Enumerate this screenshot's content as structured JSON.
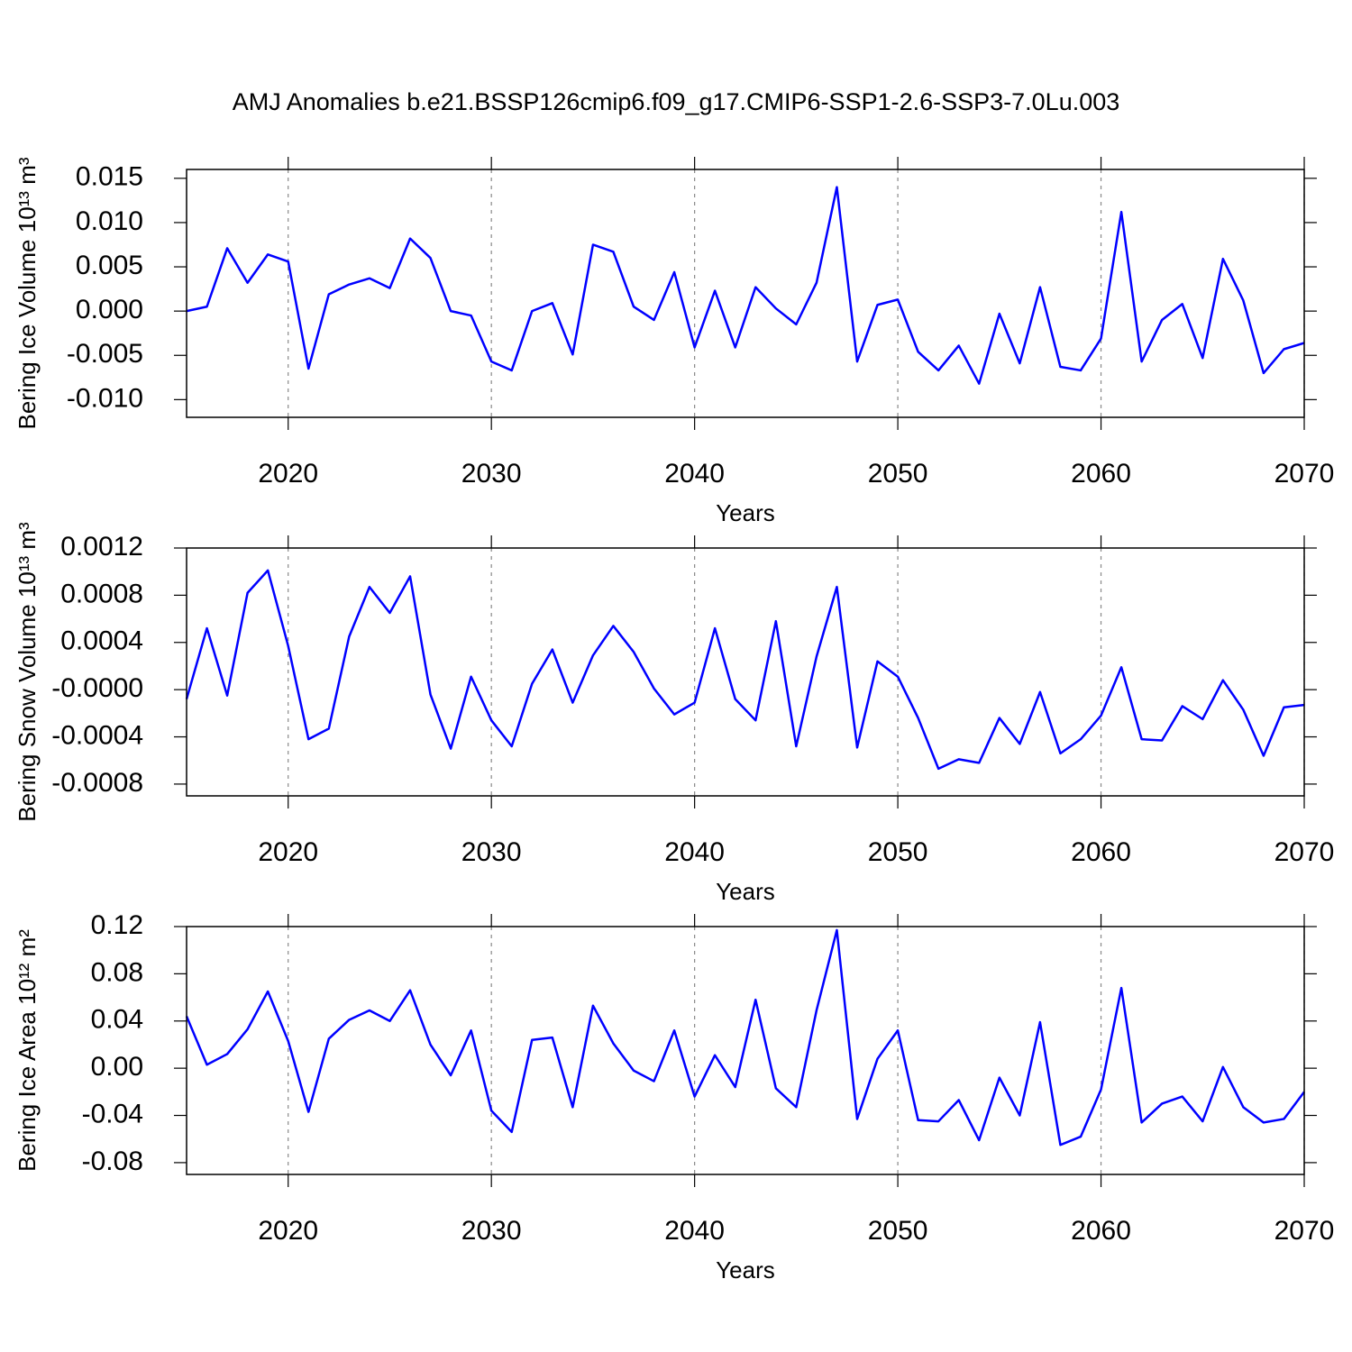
{
  "chart_data": [
    {
      "type": "line",
      "title": "AMJ Anomalies b.e21.BSSP126cmip6.f09_g17.CMIP6-SSP1-2.6-SSP3-7.0Lu.003",
      "ylabel": "Bering Ice Volume 10¹³ m³",
      "xlabel": "Years",
      "color": "#0000ff",
      "xgrid": true,
      "x": [
        2015,
        2016,
        2017,
        2018,
        2019,
        2020,
        2021,
        2022,
        2023,
        2024,
        2025,
        2026,
        2027,
        2028,
        2029,
        2030,
        2031,
        2032,
        2033,
        2034,
        2035,
        2036,
        2037,
        2038,
        2039,
        2040,
        2041,
        2042,
        2043,
        2044,
        2045,
        2046,
        2047,
        2048,
        2049,
        2050,
        2051,
        2052,
        2053,
        2054,
        2055,
        2056,
        2057,
        2058,
        2059,
        2060,
        2061,
        2062,
        2063,
        2064,
        2065,
        2066,
        2067,
        2068,
        2069,
        2070
      ],
      "values": [
        0.0,
        0.0005,
        0.0071,
        0.0032,
        0.0064,
        0.0056,
        -0.0065,
        0.0019,
        0.003,
        0.0037,
        0.0026,
        0.0082,
        0.006,
        0.0,
        -0.0005,
        -0.0057,
        -0.0067,
        0.0,
        0.0009,
        -0.0049,
        0.0075,
        0.0067,
        0.0005,
        -0.001,
        0.0044,
        -0.0041,
        0.0023,
        -0.0041,
        0.0027,
        0.0003,
        -0.0015,
        0.0032,
        0.014,
        -0.0057,
        0.0007,
        0.0013,
        -0.0046,
        -0.0067,
        -0.0039,
        -0.0082,
        -0.0003,
        -0.0059,
        0.0027,
        -0.0063,
        -0.0067,
        -0.0031,
        0.0112,
        -0.0057,
        -0.001,
        0.0008,
        -0.0053,
        0.0059,
        0.0012,
        -0.007,
        -0.0043,
        -0.0036
      ],
      "xlim": [
        2015,
        2070
      ],
      "xticks": [
        2020,
        2030,
        2040,
        2050,
        2060,
        2070
      ],
      "ylim": [
        -0.012,
        0.016
      ],
      "yticks": [
        {
          "value": -0.01,
          "label": "-0.010"
        },
        -0.005,
        {
          "value": 0,
          "label": "0.000"
        },
        0.005,
        {
          "value": 0.01,
          "label": "0.010"
        },
        0.015
      ]
    },
    {
      "type": "line",
      "ylabel": "Bering Snow Volume 10¹³ m³",
      "xlabel": "Years",
      "color": "#0000ff",
      "xgrid": true,
      "x": [
        2015,
        2016,
        2017,
        2018,
        2019,
        2020,
        2021,
        2022,
        2023,
        2024,
        2025,
        2026,
        2027,
        2028,
        2029,
        2030,
        2031,
        2032,
        2033,
        2034,
        2035,
        2036,
        2037,
        2038,
        2039,
        2040,
        2041,
        2042,
        2043,
        2044,
        2045,
        2046,
        2047,
        2048,
        2049,
        2050,
        2051,
        2052,
        2053,
        2054,
        2055,
        2056,
        2057,
        2058,
        2059,
        2060,
        2061,
        2062,
        2063,
        2064,
        2065,
        2066,
        2067,
        2068,
        2069,
        2070
      ],
      "values": [
        -8e-05,
        0.00052,
        -5e-05,
        0.00082,
        0.00101,
        0.00037,
        -0.00042,
        -0.00033,
        0.00045,
        0.00087,
        0.00065,
        0.00096,
        -4e-05,
        -0.0005,
        0.00011,
        -0.00026,
        -0.00048,
        5e-05,
        0.00034,
        -0.00011,
        0.00029,
        0.00054,
        0.00032,
        1e-05,
        -0.00021,
        -0.00011,
        0.00052,
        -8e-05,
        -0.00026,
        0.00058,
        -0.00048,
        0.00028,
        0.00087,
        -0.00049,
        0.00024,
        0.00011,
        -0.00024,
        -0.00067,
        -0.00059,
        -0.00062,
        -0.00024,
        -0.00046,
        -2e-05,
        -0.00054,
        -0.00042,
        -0.00022,
        0.00019,
        -0.00042,
        -0.00043,
        -0.00014,
        -0.00025,
        8e-05,
        -0.00017,
        -0.00056,
        -0.00015,
        -0.00013
      ],
      "xlim": [
        2015,
        2070
      ],
      "xticks": [
        2020,
        2030,
        2040,
        2050,
        2060,
        2070
      ],
      "ylim": [
        -0.0009,
        0.0012
      ],
      "yticks": [
        -0.0008,
        -0.0004,
        {
          "value": 0,
          "label": "-0.0000"
        },
        0.0004,
        0.0008,
        0.0012
      ]
    },
    {
      "type": "line",
      "ylabel": "Bering Ice Area 10¹² m²",
      "xlabel": "Years",
      "color": "#0000ff",
      "xgrid": true,
      "x": [
        2015,
        2016,
        2017,
        2018,
        2019,
        2020,
        2021,
        2022,
        2023,
        2024,
        2025,
        2026,
        2027,
        2028,
        2029,
        2030,
        2031,
        2032,
        2033,
        2034,
        2035,
        2036,
        2037,
        2038,
        2039,
        2040,
        2041,
        2042,
        2043,
        2044,
        2045,
        2046,
        2047,
        2048,
        2049,
        2050,
        2051,
        2052,
        2053,
        2054,
        2055,
        2056,
        2057,
        2058,
        2059,
        2060,
        2061,
        2062,
        2063,
        2064,
        2065,
        2066,
        2067,
        2068,
        2069,
        2070
      ],
      "values": [
        0.044,
        0.003,
        0.012,
        0.033,
        0.065,
        0.023,
        -0.037,
        0.025,
        0.041,
        0.049,
        0.04,
        0.066,
        0.02,
        -0.006,
        0.032,
        -0.036,
        -0.054,
        0.024,
        0.026,
        -0.033,
        0.053,
        0.021,
        -0.002,
        -0.011,
        0.032,
        -0.024,
        0.011,
        -0.016,
        0.058,
        -0.017,
        -0.033,
        0.049,
        0.117,
        -0.043,
        0.008,
        0.032,
        -0.044,
        -0.045,
        -0.027,
        -0.061,
        -0.008,
        -0.04,
        0.039,
        -0.065,
        -0.058,
        -0.018,
        0.068,
        -0.046,
        -0.03,
        -0.024,
        -0.045,
        0.001,
        -0.033,
        -0.046,
        -0.043,
        -0.02
      ],
      "xlim": [
        2015,
        2070
      ],
      "xticks": [
        2020,
        2030,
        2040,
        2050,
        2060,
        2070
      ],
      "ylim": [
        -0.09,
        0.12
      ],
      "yticks": [
        -0.08,
        -0.04,
        {
          "value": 0,
          "label": "0.00"
        },
        0.04,
        0.08,
        0.12
      ]
    }
  ]
}
